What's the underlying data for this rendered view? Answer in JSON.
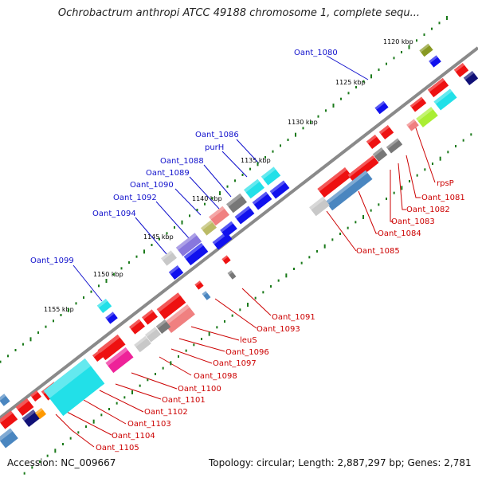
{
  "title": "Ochrobactrum anthropi ATCC 49188 chromosome 1, complete sequ...",
  "footer": {
    "accession": "Accession: NC_009667",
    "summary": "Topology: circular; Length: 2,887,297 bp; Genes: 2,781"
  },
  "ticks": [
    "1120 kbp",
    "1125 kbp",
    "1130 kbp",
    "1135 kbp",
    "1140 kbp",
    "1145 kbp",
    "1150 kbp",
    "1155 kbp"
  ],
  "gene_labels_top": [
    "Oant_1080",
    "Oant_1086",
    "purH",
    "Oant_1088",
    "Oant_1089",
    "Oant_1090",
    "Oant_1092",
    "Oant_1094",
    "Oant_1099"
  ],
  "gene_labels_bottom": [
    "rpsP",
    "Oant_1081",
    "Oant_1082",
    "Oant_1083",
    "Oant_1084",
    "Oant_1085",
    "Oant_1091",
    "Oant_1093",
    "leuS",
    "Oant_1096",
    "Oant_1097",
    "Oant_1098",
    "Oant_1100",
    "Oant_1101",
    "Oant_1102",
    "Oant_1103",
    "Oant_1104",
    "Oant_1105"
  ],
  "colors": {
    "backbone": "#8a8a8a",
    "top_label": "#1010cc",
    "bottom_label": "#cc0000",
    "tick_dot": "#1a7a1a",
    "gene_red": "#ee1111",
    "gene_blue": "#1111ee",
    "gene_cyan": "#22e0e8",
    "gene_steel": "#4a86c0",
    "gene_gray": "#777777",
    "gene_silver": "#c8c8c8",
    "gene_pink": "#f08080",
    "gene_magenta": "#ee2299",
    "gene_olive": "#889922",
    "gene_lime": "#aaee33",
    "gene_purple": "#8877dd",
    "gene_navy": "#111177",
    "gene_orange": "#ff9900",
    "gene_khaki": "#bbbb66"
  }
}
